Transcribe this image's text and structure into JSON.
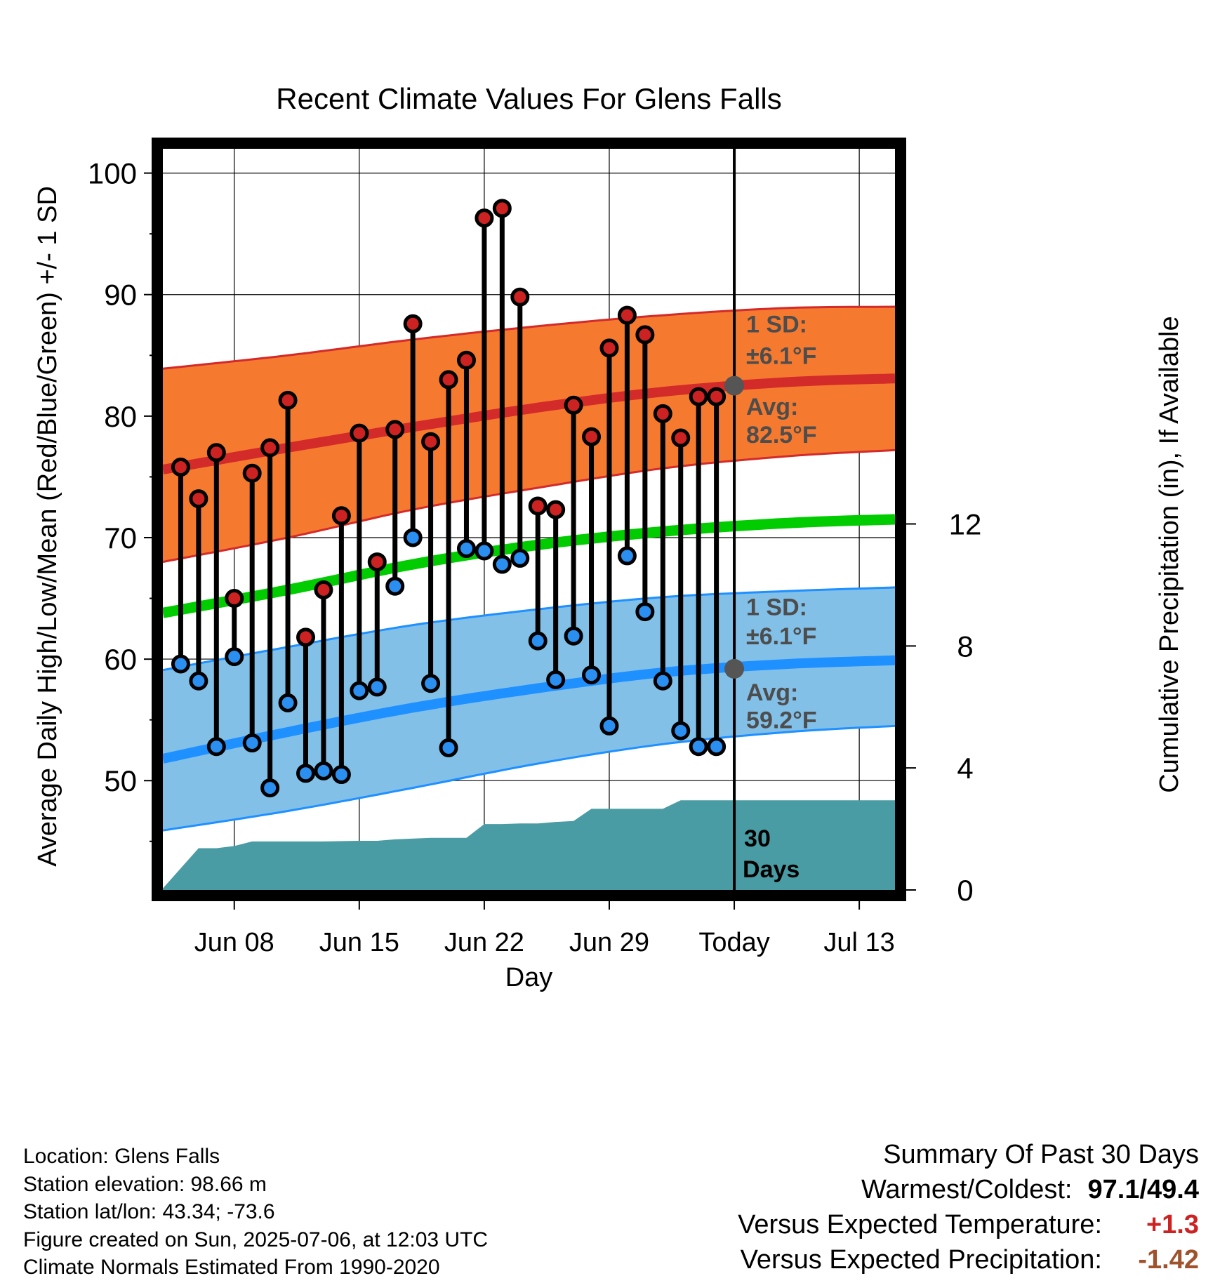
{
  "colors": {
    "high_band": "#f57a2f",
    "high_line": "#d32a2a",
    "low_band": "#82c0e8",
    "low_line": "#1e90ff",
    "mean_line": "#00cc00",
    "precip": "#4a9ca4",
    "high_dot": "#cc2222",
    "low_dot": "#2a8ff0",
    "today_dot": "#555555",
    "note_text": "#4d4d4d",
    "positive_temp": "#cc2222",
    "negative_precip": "#a0522d"
  },
  "chart_data": {
    "type": "line",
    "title": "Recent Climate Values For Glens Falls",
    "xlabel": "Day",
    "ylabel": "Average Daily High/Low/Mean (Red/Blue/Green) +/- 1 SD",
    "ylabel_right": "Cumulative Precipitation (in), If Available",
    "x_day_range": [
      "2025-06-04",
      "2025-07-15"
    ],
    "ylim": [
      41,
      102
    ],
    "y_ticks": [
      50,
      60,
      70,
      80,
      90,
      100
    ],
    "y_right_lim": [
      0,
      24.3
    ],
    "y_right_ticks": [
      0,
      4,
      8,
      12
    ],
    "x_ticks": [
      {
        "date": "2025-06-08",
        "label": "Jun 08"
      },
      {
        "date": "2025-06-15",
        "label": "Jun 15"
      },
      {
        "date": "2025-06-22",
        "label": "Jun 22"
      },
      {
        "date": "2025-06-29",
        "label": "Jun 29"
      },
      {
        "date": "2025-07-06",
        "label": "Today"
      },
      {
        "date": "2025-07-13",
        "label": "Jul 13"
      }
    ],
    "grid": true,
    "today": "2025-07-06",
    "normal_high": {
      "dates": [
        "2025-06-04",
        "2025-06-11",
        "2025-06-18",
        "2025-06-25",
        "2025-07-02",
        "2025-07-09",
        "2025-07-15"
      ],
      "avg": [
        75.6,
        77.4,
        79.1,
        80.7,
        82.0,
        82.8,
        83.1
      ],
      "upper": [
        83.9,
        85.0,
        86.3,
        87.4,
        88.3,
        88.9,
        89.0
      ],
      "lower": [
        68.0,
        70.0,
        72.3,
        74.1,
        75.7,
        76.7,
        77.2
      ]
    },
    "normal_mean": {
      "dates": [
        "2025-06-04",
        "2025-06-11",
        "2025-06-18",
        "2025-06-25",
        "2025-07-02",
        "2025-07-09",
        "2025-07-15"
      ],
      "values": [
        63.8,
        65.7,
        67.8,
        69.4,
        70.5,
        71.2,
        71.5
      ]
    },
    "normal_low": {
      "dates": [
        "2025-06-04",
        "2025-06-11",
        "2025-06-18",
        "2025-06-25",
        "2025-07-02",
        "2025-07-09",
        "2025-07-15"
      ],
      "avg": [
        51.8,
        54.0,
        56.0,
        57.6,
        58.9,
        59.6,
        59.9
      ],
      "upper": [
        59.1,
        61.0,
        62.8,
        64.1,
        65.1,
        65.6,
        65.9
      ],
      "lower": [
        45.9,
        47.5,
        49.4,
        51.4,
        53.0,
        54.0,
        54.5
      ]
    },
    "observed": {
      "dates": [
        "2025-06-05",
        "2025-06-06",
        "2025-06-07",
        "2025-06-08",
        "2025-06-09",
        "2025-06-10",
        "2025-06-11",
        "2025-06-12",
        "2025-06-13",
        "2025-06-14",
        "2025-06-15",
        "2025-06-16",
        "2025-06-17",
        "2025-06-18",
        "2025-06-19",
        "2025-06-20",
        "2025-06-21",
        "2025-06-22",
        "2025-06-23",
        "2025-06-24",
        "2025-06-25",
        "2025-06-26",
        "2025-06-27",
        "2025-06-28",
        "2025-06-29",
        "2025-06-30",
        "2025-07-01",
        "2025-07-02",
        "2025-07-03",
        "2025-07-04",
        "2025-07-05"
      ],
      "high": [
        75.8,
        73.2,
        77.0,
        65.0,
        75.3,
        77.4,
        81.3,
        61.8,
        65.7,
        71.8,
        78.6,
        68.0,
        78.9,
        87.6,
        77.9,
        83.0,
        84.6,
        96.3,
        97.1,
        89.8,
        72.6,
        72.3,
        80.9,
        78.3,
        85.6,
        88.3,
        86.7,
        80.2,
        78.2,
        81.6,
        81.6
      ],
      "low": [
        59.6,
        58.2,
        52.8,
        60.2,
        53.1,
        49.4,
        56.4,
        50.6,
        50.8,
        50.5,
        57.4,
        57.7,
        66.0,
        70.0,
        58.0,
        52.7,
        69.1,
        68.9,
        67.8,
        68.3,
        61.5,
        58.3,
        61.9,
        58.7,
        54.5,
        68.5,
        63.9,
        58.2,
        54.1,
        52.8,
        52.8
      ]
    },
    "precip_cumulative": {
      "dates": [
        "2025-06-04",
        "2025-06-06",
        "2025-06-07",
        "2025-06-08",
        "2025-06-09",
        "2025-06-11",
        "2025-06-13",
        "2025-06-15",
        "2025-06-16",
        "2025-06-17",
        "2025-06-19",
        "2025-06-20",
        "2025-06-21",
        "2025-06-22",
        "2025-06-23",
        "2025-06-24",
        "2025-06-25",
        "2025-06-26",
        "2025-06-27",
        "2025-06-28",
        "2025-06-29",
        "2025-06-30",
        "2025-07-01",
        "2025-07-02",
        "2025-07-03",
        "2025-07-04",
        "2025-07-05",
        "2025-07-06",
        "2025-07-15"
      ],
      "values": [
        0.05,
        1.37,
        1.37,
        1.44,
        1.59,
        1.59,
        1.59,
        1.61,
        1.61,
        1.66,
        1.71,
        1.71,
        1.71,
        2.16,
        2.16,
        2.18,
        2.18,
        2.23,
        2.26,
        2.66,
        2.66,
        2.66,
        2.66,
        2.66,
        2.94,
        2.94,
        2.94,
        2.94,
        2.94
      ]
    },
    "annotations": {
      "high_sd_label": "1 SD:",
      "high_sd_value": "±6.1°F",
      "high_avg_label": "Avg:",
      "high_avg_value": "82.5°F",
      "low_sd_label": "1 SD:",
      "low_sd_value": "±6.1°F",
      "low_avg_label": "Avg:",
      "low_avg_value": "59.2°F",
      "today_high_avg": 82.5,
      "today_low_avg": 59.2,
      "days_number": "30",
      "days_word": "Days"
    }
  },
  "footer": {
    "location": "Location: Glens Falls",
    "elevation": "Station elevation: 98.66 m",
    "latlon": "Station lat/lon: 43.34; -73.6",
    "created": "Figure created on Sun, 2025-07-06, at 12:03 UTC",
    "normals": "Climate Normals Estimated From 1990-2020"
  },
  "summary": {
    "title": "Summary Of Past 30 Days",
    "warm_cold_label": "Warmest/Coldest:",
    "warmest": "97.1",
    "separator": "/",
    "coldest": "49.4",
    "temp_label": "Versus Expected Temperature:",
    "temp_value": "+1.3",
    "precip_label": "Versus Expected Precipitation:",
    "precip_value": "-1.42"
  }
}
